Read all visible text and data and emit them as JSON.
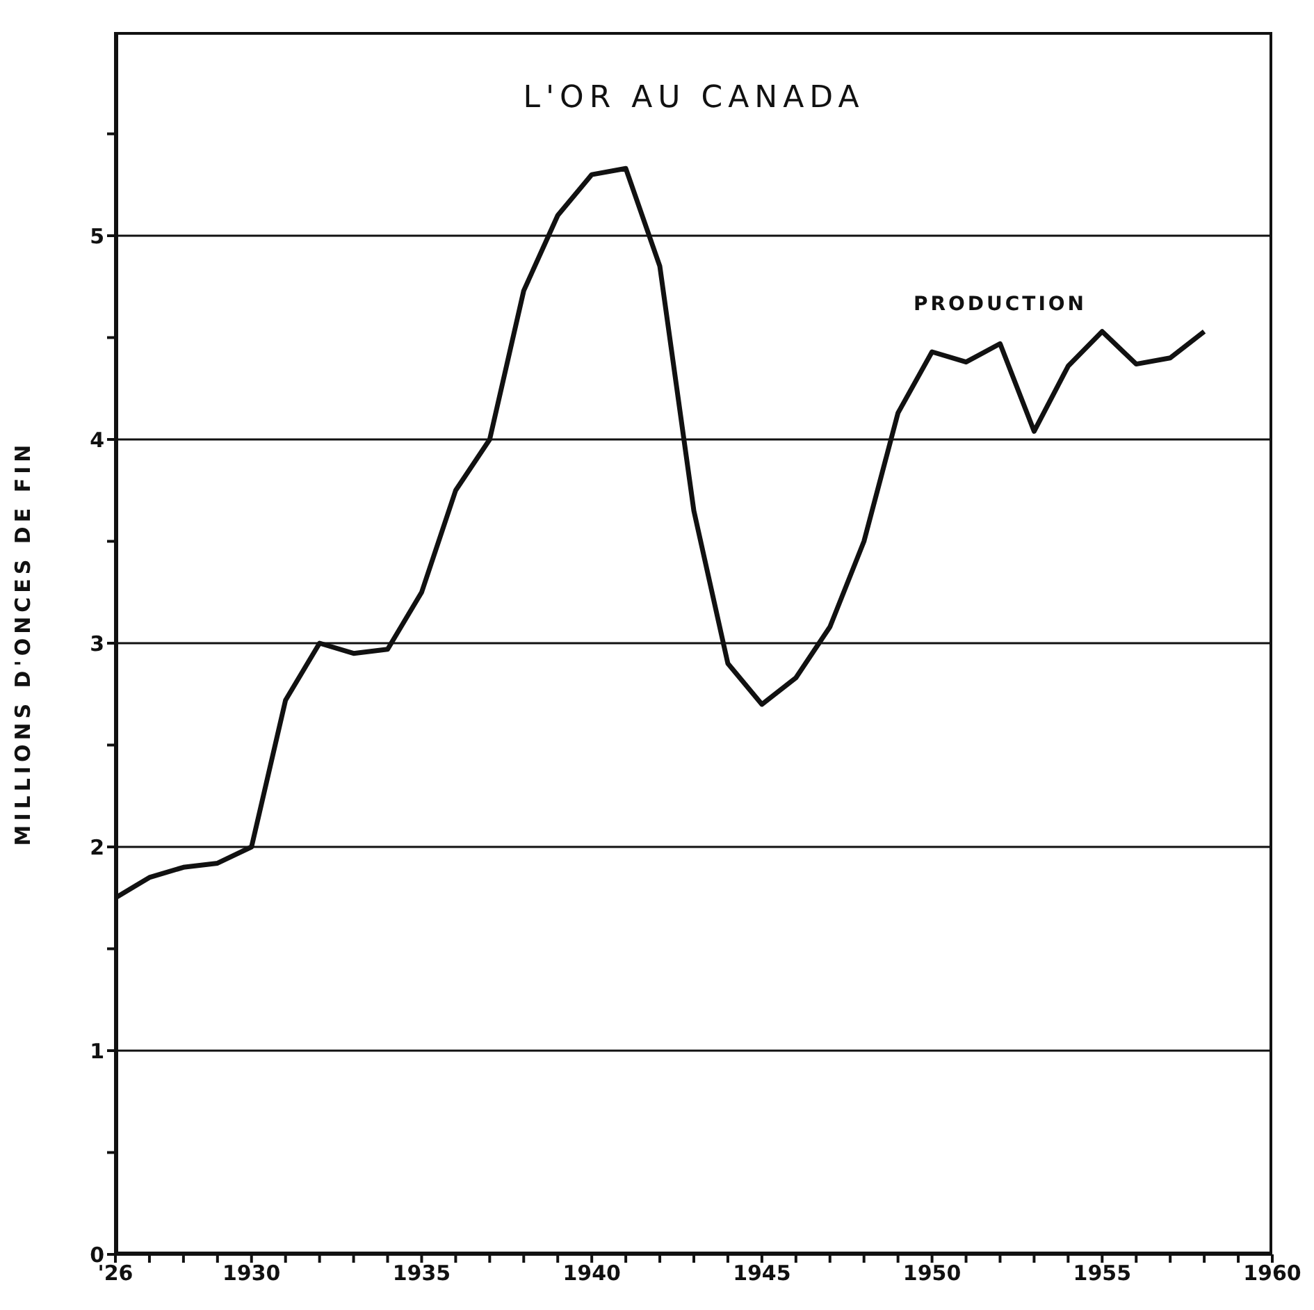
{
  "chart_data": {
    "type": "line",
    "title": "L'OR AU CANADA",
    "ylabel": "MILLIONS D'ONCES DE FIN",
    "x": [
      1926,
      1927,
      1928,
      1929,
      1930,
      1931,
      1932,
      1933,
      1934,
      1935,
      1936,
      1937,
      1938,
      1939,
      1940,
      1941,
      1942,
      1943,
      1944,
      1945,
      1946,
      1947,
      1948,
      1949,
      1950,
      1951,
      1952,
      1953,
      1954,
      1955,
      1956,
      1957,
      1958
    ],
    "series": [
      {
        "name": "PRODUCTION",
        "color": "#111111",
        "values": [
          1.75,
          1.85,
          1.9,
          1.92,
          2.0,
          2.72,
          3.0,
          2.95,
          2.97,
          3.25,
          3.75,
          4.0,
          4.73,
          5.1,
          5.3,
          5.33,
          4.85,
          3.65,
          2.9,
          2.7,
          2.83,
          3.08,
          3.5,
          4.13,
          4.43,
          4.38,
          4.47,
          4.04,
          4.36,
          4.53,
          4.37,
          4.4,
          4.53
        ]
      }
    ],
    "xlim": [
      1926,
      1960
    ],
    "xticks": [
      {
        "value": 1926,
        "label": "'26"
      },
      {
        "value": 1927,
        "label": null
      },
      {
        "value": 1928,
        "label": null
      },
      {
        "value": 1929,
        "label": null
      },
      1930,
      {
        "value": 1931,
        "label": null
      },
      {
        "value": 1932,
        "label": null
      },
      {
        "value": 1933,
        "label": null
      },
      {
        "value": 1934,
        "label": null
      },
      1935,
      {
        "value": 1936,
        "label": null
      },
      {
        "value": 1937,
        "label": null
      },
      {
        "value": 1938,
        "label": null
      },
      {
        "value": 1939,
        "label": null
      },
      1940,
      {
        "value": 1941,
        "label": null
      },
      {
        "value": 1942,
        "label": null
      },
      {
        "value": 1943,
        "label": null
      },
      {
        "value": 1944,
        "label": null
      },
      1945,
      {
        "value": 1946,
        "label": null
      },
      {
        "value": 1947,
        "label": null
      },
      {
        "value": 1948,
        "label": null
      },
      {
        "value": 1949,
        "label": null
      },
      1950,
      {
        "value": 1951,
        "label": null
      },
      {
        "value": 1952,
        "label": null
      },
      {
        "value": 1953,
        "label": null
      },
      {
        "value": 1954,
        "label": null
      },
      1955,
      {
        "value": 1956,
        "label": null
      },
      {
        "value": 1957,
        "label": null
      },
      {
        "value": 1958,
        "label": null
      },
      {
        "value": 1959,
        "label": null
      },
      1960
    ],
    "ylim": [
      0,
      6
    ],
    "yticks": [
      0,
      {
        "value": 0.5,
        "label": null
      },
      1,
      {
        "value": 1.5,
        "label": null
      },
      2,
      {
        "value": 2.5,
        "label": null
      },
      3,
      {
        "value": 3.5,
        "label": null
      },
      4,
      {
        "value": 4.5,
        "label": null
      },
      5,
      {
        "value": 5.5,
        "label": null
      }
    ],
    "grid": "y",
    "marker": "none",
    "line_style": "solid"
  }
}
